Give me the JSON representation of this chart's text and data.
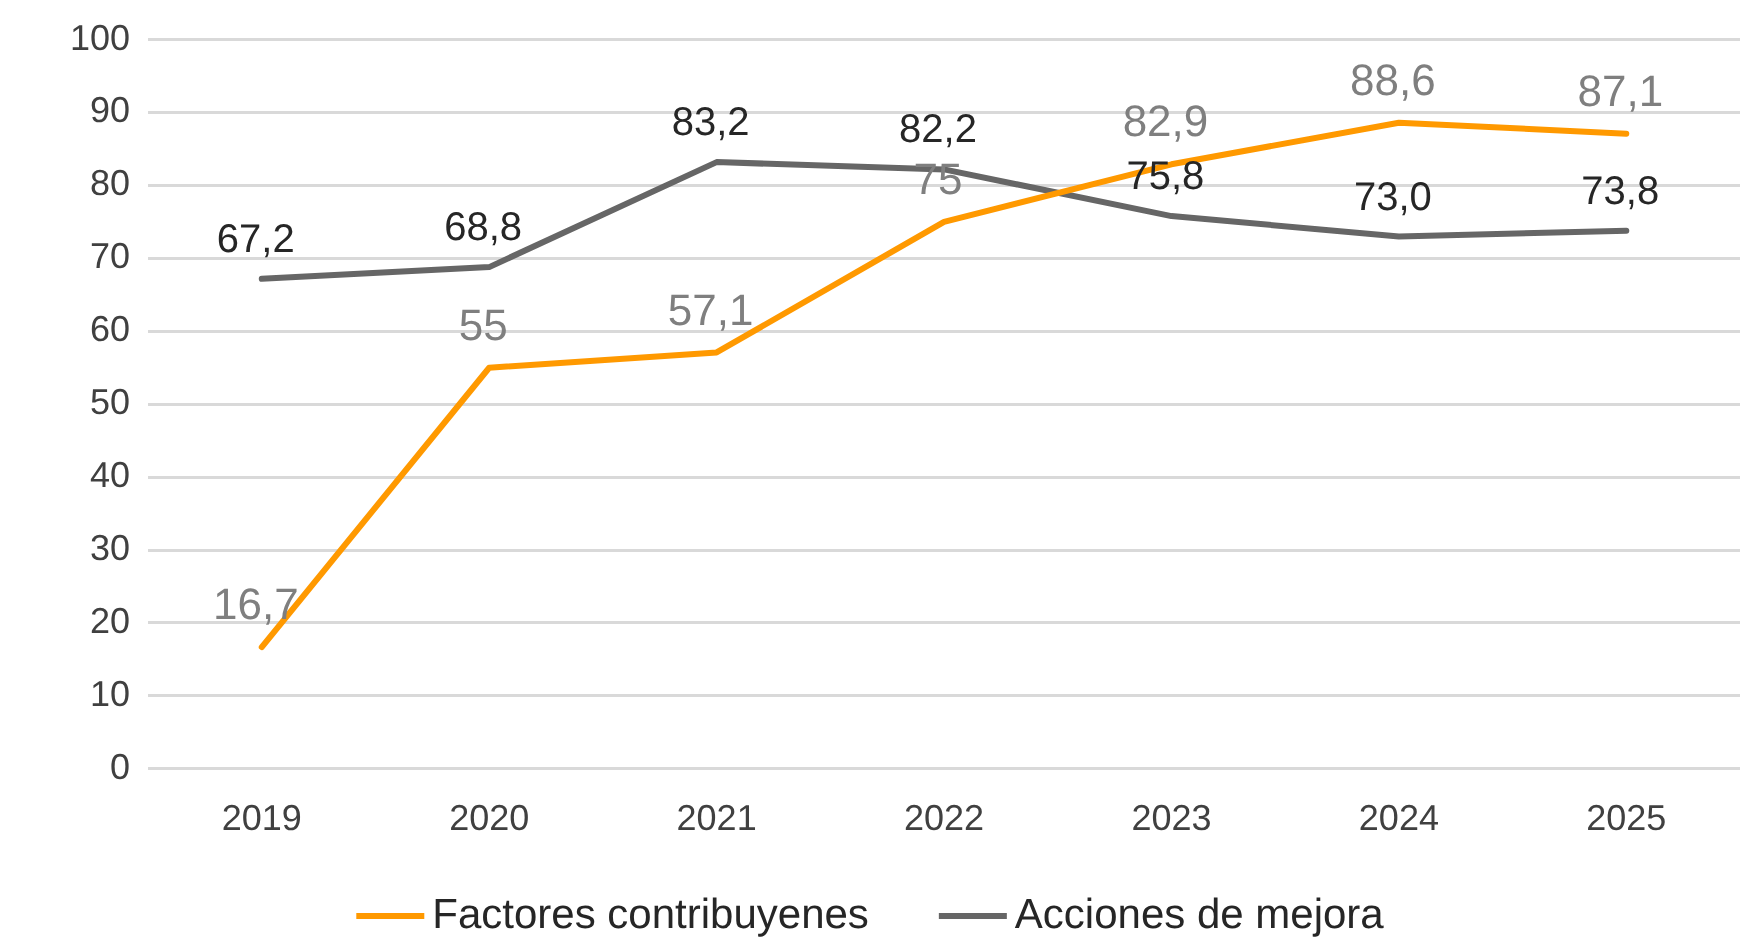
{
  "chart_data": {
    "type": "line",
    "categories": [
      "2019",
      "2020",
      "2021",
      "2022",
      "2023",
      "2024",
      "2025"
    ],
    "series": [
      {
        "name": "Factores contribuyenes",
        "color": "#ff9900",
        "values": [
          16.7,
          55,
          57.1,
          75,
          82.9,
          88.6,
          87.1
        ],
        "value_labels": [
          "16,7",
          "55",
          "57,1",
          "75",
          "82,9",
          "88,6",
          "87,1"
        ]
      },
      {
        "name": "Acciones de mejora",
        "color": "#666666",
        "values": [
          67.2,
          68.8,
          83.2,
          82.2,
          75.8,
          73.0,
          73.8
        ],
        "value_labels": [
          "67,2",
          "68,8",
          "83,2",
          "82,2",
          "75,8",
          "73,0",
          "73,8"
        ]
      }
    ],
    "ylim": [
      0,
      100
    ],
    "yticks": [
      0,
      10,
      20,
      30,
      40,
      50,
      60,
      70,
      80,
      90,
      100
    ],
    "grid": "y",
    "legend": "bottom",
    "marker": "none",
    "line_style": "solid"
  }
}
